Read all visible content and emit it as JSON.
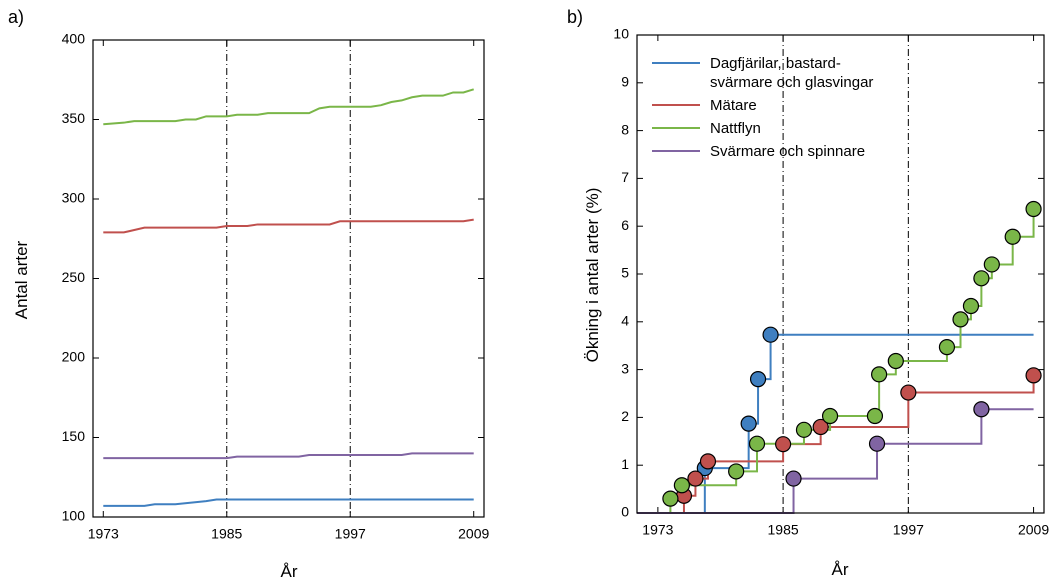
{
  "chart_data": [
    {
      "type": "line",
      "panel_label": "a)",
      "ylabel": "Antal arter",
      "xlabel": "År",
      "xlim": [
        1972,
        2010
      ],
      "xticks": [
        1973,
        1985,
        1997,
        2009
      ],
      "ylim": [
        100,
        400
      ],
      "yticks": [
        100,
        150,
        200,
        250,
        300,
        350,
        400
      ],
      "vlines": [
        1985,
        1997
      ],
      "markers": false,
      "series": [
        {
          "color": "#7ab648",
          "x": [
            1973,
            1975,
            1976,
            1980,
            1981,
            1982,
            1983,
            1985,
            1986,
            1988,
            1989,
            1993,
            1994,
            1995,
            1999,
            2000,
            2001,
            2002,
            2003,
            2004,
            2006,
            2007,
            2008,
            2009
          ],
          "values": [
            347,
            348,
            349,
            349,
            350,
            350,
            352,
            352,
            353,
            353,
            354,
            354,
            357,
            358,
            358,
            359,
            361,
            362,
            364,
            365,
            365,
            367,
            367,
            369
          ]
        },
        {
          "color": "#c0504d",
          "x": [
            1973,
            1975,
            1977,
            1984,
            1985,
            1987,
            1988,
            1995,
            1996,
            2008,
            2009
          ],
          "values": [
            279,
            279,
            282,
            282,
            283,
            283,
            284,
            284,
            286,
            286,
            287
          ]
        },
        {
          "color": "#8064a2",
          "x": [
            1973,
            1985,
            1986,
            1992,
            1993,
            2002,
            2003,
            2009
          ],
          "values": [
            137,
            137,
            138,
            138,
            139,
            139,
            140,
            140
          ]
        },
        {
          "color": "#3f7fc0",
          "x": [
            1973,
            1977,
            1978,
            1980,
            1983,
            1984,
            2009
          ],
          "values": [
            107,
            107,
            108,
            108,
            110,
            111,
            111
          ]
        }
      ]
    },
    {
      "type": "line",
      "panel_label": "b)",
      "ylabel": "Ökning i antal arter (%)",
      "xlabel": "År",
      "xlim": [
        1971,
        2010
      ],
      "xticks": [
        1973,
        1985,
        1997,
        2009
      ],
      "ylim": [
        0,
        10
      ],
      "yticks": [
        0,
        1,
        2,
        3,
        4,
        5,
        6,
        7,
        8,
        9,
        10
      ],
      "vlines": [
        1985,
        1997
      ],
      "markers": true,
      "series": [
        {
          "name": "Dagfjärilar, bastard-\nsvärmare och glasvingar",
          "color": "#3f7fc0",
          "x": [
            1977.5,
            1981.7,
            1982.6,
            1983.8
          ],
          "values": [
            0.94,
            1.87,
            2.8,
            3.73
          ]
        },
        {
          "name": "Mätare",
          "color": "#c0504d",
          "x": [
            1975.5,
            1976.6,
            1977.8,
            1985,
            1988.6,
            1997,
            2009
          ],
          "values": [
            0.36,
            0.72,
            1.08,
            1.44,
            1.8,
            2.52,
            2.88
          ]
        },
        {
          "name": "Nattflyn",
          "color": "#7ab648",
          "x": [
            1974.2,
            1975.3,
            1980.5,
            1982.5,
            1987,
            1989.5,
            1993.8,
            1994.2,
            1995.8,
            2000.7,
            2002,
            2003,
            2004,
            2005,
            2007,
            2009
          ],
          "values": [
            0.3,
            0.58,
            0.87,
            1.45,
            1.74,
            2.03,
            2.03,
            2.9,
            3.18,
            3.47,
            4.05,
            4.33,
            4.91,
            5.2,
            5.78,
            6.36
          ]
        },
        {
          "name": "Svärmare och spinnare",
          "color": "#8064a2",
          "x": [
            1986,
            1994,
            2004
          ],
          "values": [
            0.72,
            1.45,
            2.17
          ]
        }
      ]
    }
  ]
}
